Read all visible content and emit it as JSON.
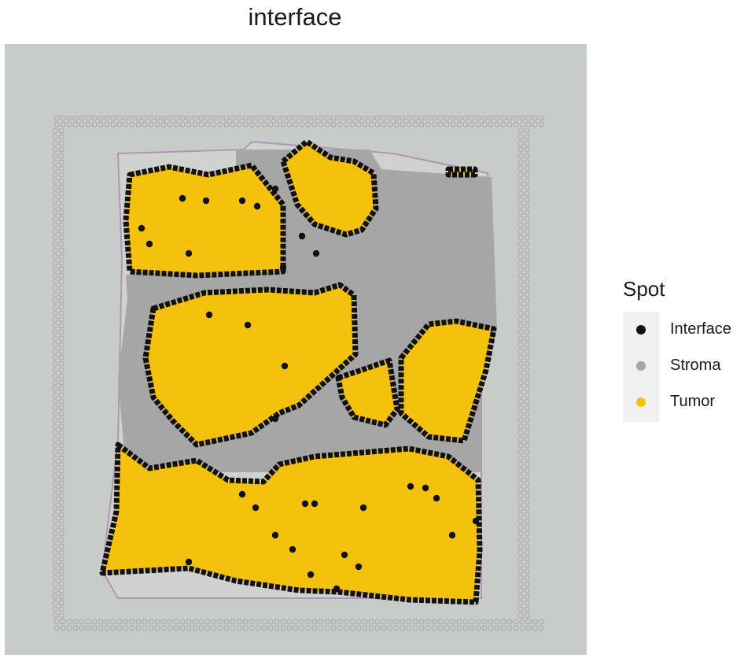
{
  "chart_data": {
    "type": "scatter",
    "title": "interface",
    "legend": {
      "title": "Spot",
      "placement": "right",
      "entries": [
        {
          "name": "Interface",
          "color": "#111111"
        },
        {
          "name": "Stroma",
          "color": "#a6a6a6"
        },
        {
          "name": "Tumor",
          "color": "#f4c20d"
        }
      ]
    },
    "background": "tissue-image",
    "grid": false,
    "axes_visible": false,
    "regions": {
      "tissue_outline": [
        [
          150,
          195
        ],
        [
          310,
          190
        ],
        [
          320,
          180
        ],
        [
          500,
          195
        ],
        [
          620,
          220
        ],
        [
          630,
          420
        ],
        [
          612,
          470
        ],
        [
          612,
          760
        ],
        [
          150,
          760
        ],
        [
          130,
          725
        ],
        [
          150,
          560
        ],
        [
          155,
          330
        ]
      ],
      "stroma": [
        [
          300,
          190
        ],
        [
          470,
          190
        ],
        [
          485,
          215
        ],
        [
          625,
          225
        ],
        [
          632,
          418
        ],
        [
          612,
          470
        ],
        [
          612,
          600
        ],
        [
          160,
          600
        ],
        [
          150,
          480
        ],
        [
          162,
          380
        ],
        [
          160,
          350
        ],
        [
          300,
          300
        ]
      ],
      "tumor": [
        [
          [
            165,
            222
          ],
          [
            215,
            212
          ],
          [
            265,
            222
          ],
          [
            320,
            210
          ],
          [
            360,
            260
          ],
          [
            360,
            345
          ],
          [
            250,
            350
          ],
          [
            165,
            345
          ],
          [
            160,
            280
          ]
        ],
        [
          [
            360,
            205
          ],
          [
            390,
            180
          ],
          [
            420,
            200
          ],
          [
            450,
            205
          ],
          [
            475,
            220
          ],
          [
            478,
            265
          ],
          [
            460,
            292
          ],
          [
            440,
            298
          ],
          [
            400,
            285
          ],
          [
            378,
            260
          ]
        ],
        [
          [
            195,
            392
          ],
          [
            260,
            372
          ],
          [
            340,
            368
          ],
          [
            400,
            372
          ],
          [
            432,
            362
          ],
          [
            450,
            375
          ],
          [
            452,
            450
          ],
          [
            430,
            470
          ],
          [
            380,
            515
          ],
          [
            355,
            525
          ],
          [
            320,
            550
          ],
          [
            250,
            565
          ],
          [
            220,
            535
          ],
          [
            195,
            505
          ],
          [
            185,
            455
          ]
        ],
        [
          [
            510,
            455
          ],
          [
            545,
            412
          ],
          [
            580,
            408
          ],
          [
            628,
            418
          ],
          [
            618,
            470
          ],
          [
            590,
            560
          ],
          [
            545,
            555
          ],
          [
            510,
            525
          ]
        ],
        [
          [
            430,
            480
          ],
          [
            460,
            470
          ],
          [
            495,
            458
          ],
          [
            505,
            520
          ],
          [
            490,
            540
          ],
          [
            450,
            530
          ],
          [
            435,
            505
          ]
        ],
        [
          [
            150,
            565
          ],
          [
            190,
            595
          ],
          [
            250,
            585
          ],
          [
            290,
            610
          ],
          [
            335,
            612
          ],
          [
            355,
            590
          ],
          [
            400,
            580
          ],
          [
            460,
            575
          ],
          [
            520,
            570
          ],
          [
            570,
            580
          ],
          [
            608,
            610
          ],
          [
            610,
            700
          ],
          [
            605,
            765
          ],
          [
            520,
            762
          ],
          [
            430,
            752
          ],
          [
            380,
            750
          ],
          [
            300,
            738
          ],
          [
            240,
            722
          ],
          [
            130,
            728
          ],
          [
            148,
            650
          ]
        ],
        [
          [
            570,
            215
          ],
          [
            604,
            215
          ],
          [
            604,
            222
          ],
          [
            570,
            222
          ]
        ]
      ],
      "interface_extra_points": [
        [
          315,
          413
        ],
        [
          350,
          532
        ],
        [
          362,
          465
        ],
        [
          360,
          340
        ],
        [
          388,
          640
        ],
        [
          400,
          640
        ],
        [
          462,
          645
        ],
        [
          438,
          705
        ],
        [
          372,
          698
        ],
        [
          395,
          730
        ],
        [
          428,
          748
        ],
        [
          456,
          720
        ],
        [
          522,
          618
        ],
        [
          541,
          620
        ],
        [
          555,
          633
        ],
        [
          575,
          680
        ],
        [
          605,
          662
        ],
        [
          308,
          628
        ],
        [
          325,
          645
        ],
        [
          350,
          680
        ],
        [
          240,
          714
        ],
        [
          232,
          252
        ],
        [
          262,
          255
        ],
        [
          240,
          322
        ],
        [
          180,
          290
        ],
        [
          190,
          310
        ],
        [
          266,
          400
        ],
        [
          308,
          255
        ],
        [
          327,
          262
        ],
        [
          350,
          240
        ],
        [
          384,
          300
        ],
        [
          402,
          322
        ]
      ]
    }
  }
}
